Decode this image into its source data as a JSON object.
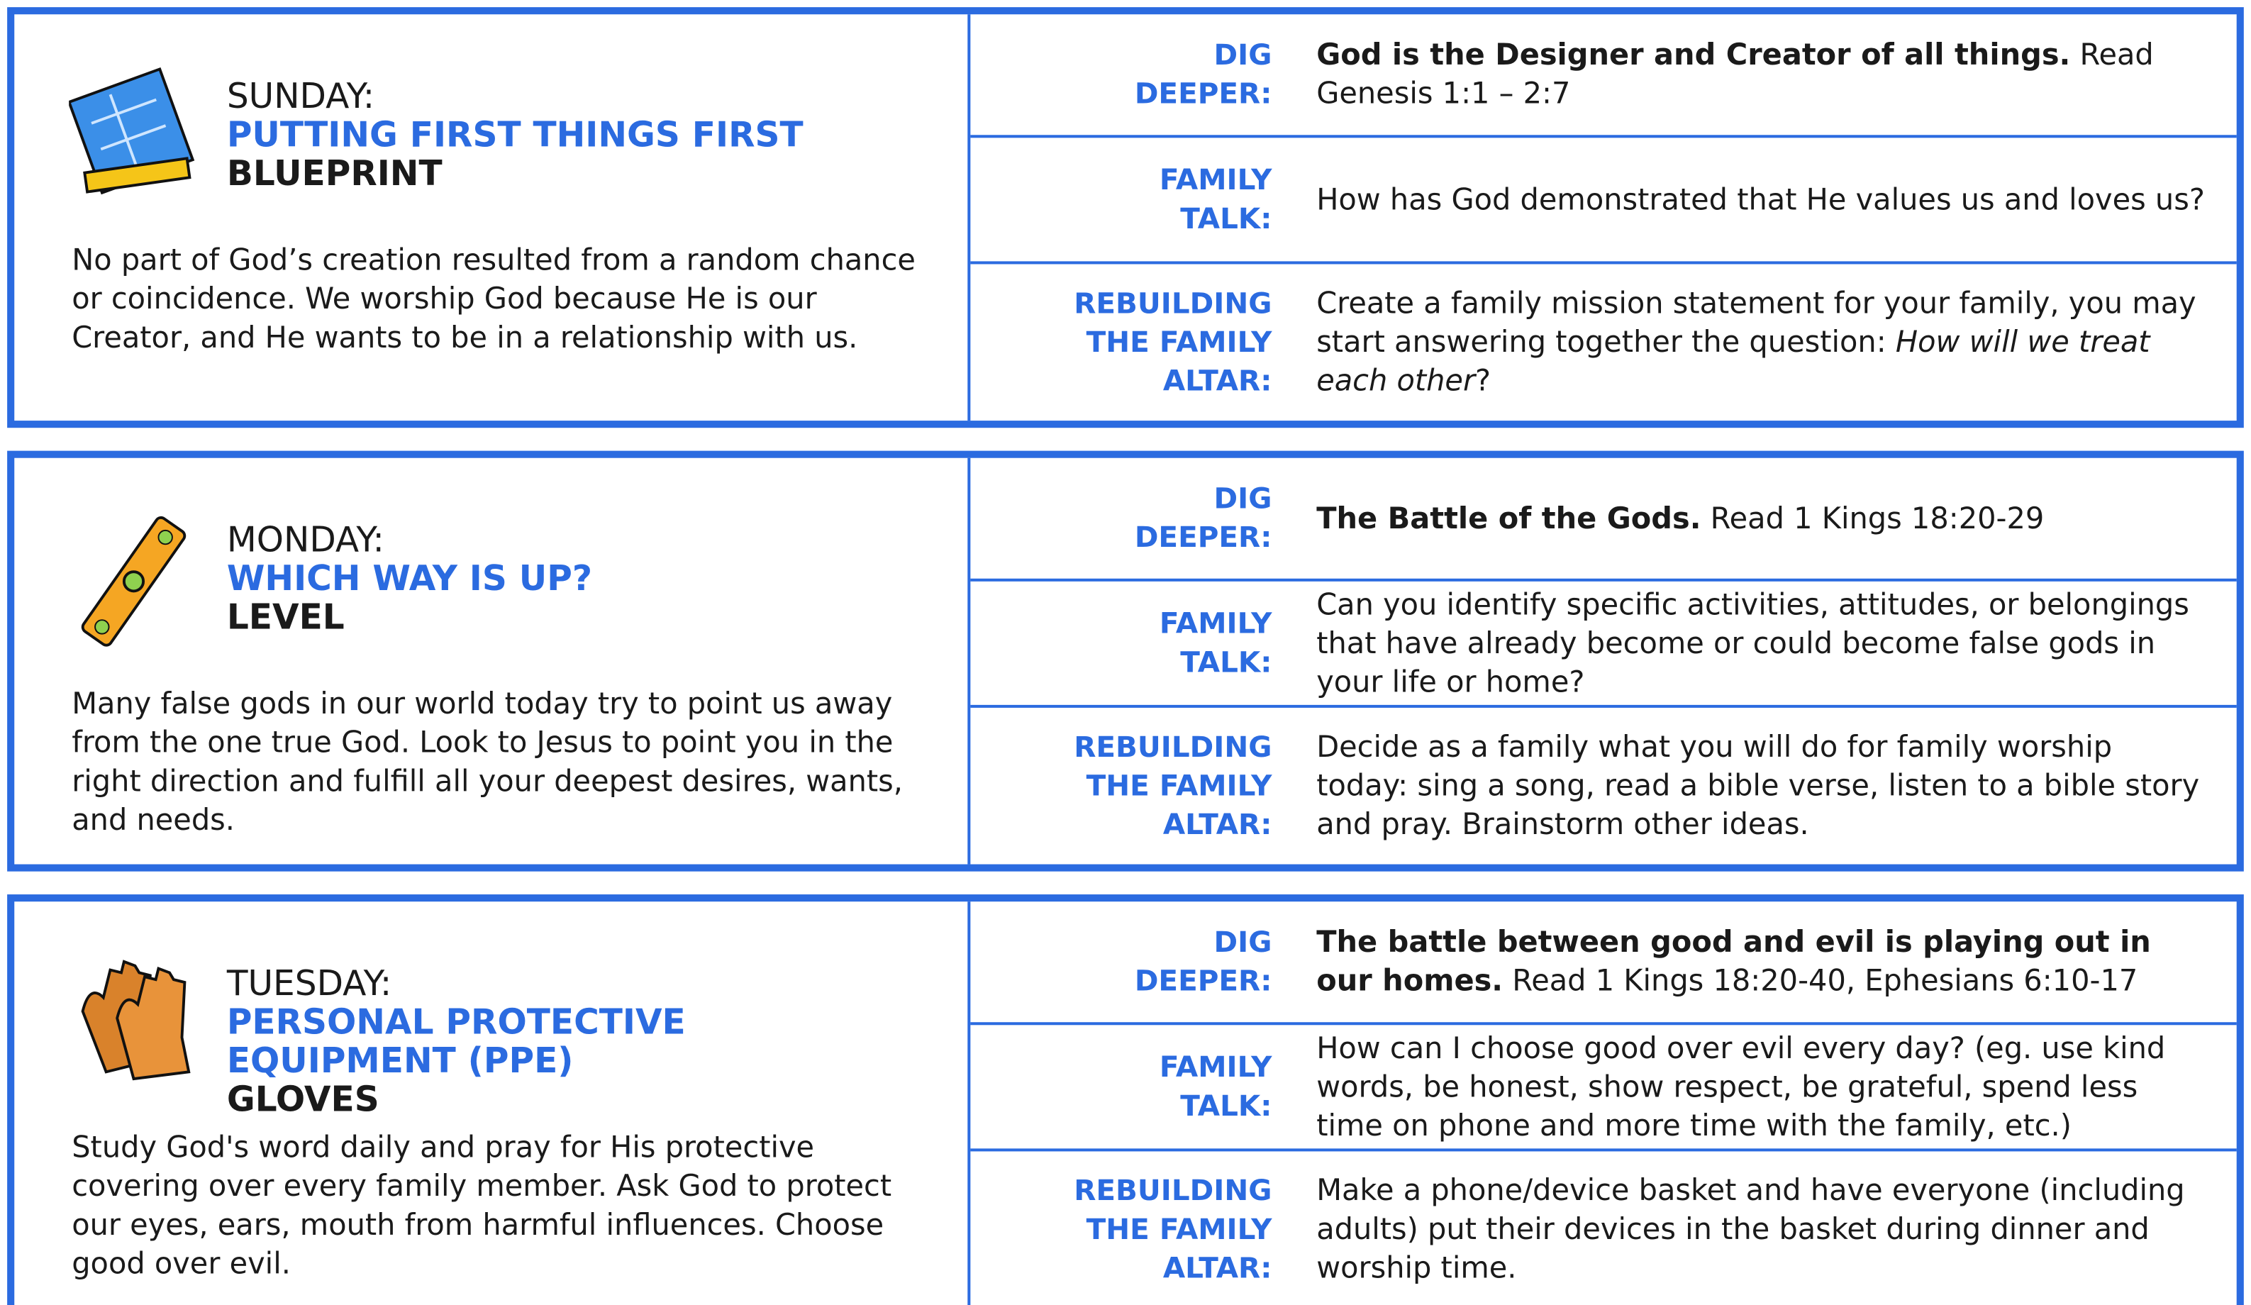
{
  "days": [
    {
      "day": "SUNDAY:",
      "title": "PUTTING FIRST THINGS FIRST",
      "tool": "BLUEPRINT",
      "description": "No part of God’s creation resulted from a random chance or coincidence. We worship God because He is our Creator, and He wants to be in a relationship with us.",
      "rows": [
        {
          "label": [
            "DIG",
            "DEEPER:"
          ],
          "text": [
            {
              "bold": "God is the Designer and Creator of all things."
            },
            {
              "text": " Read Genesis 1:1 – 2:7"
            }
          ]
        },
        {
          "label": [
            "FAMILY",
            "TALK:"
          ],
          "text": [
            {
              "text": "How has God demonstrated that He values us and loves us?"
            }
          ]
        },
        {
          "label": [
            "REBUILDING",
            "THE FAMILY",
            "ALTAR:"
          ],
          "text": [
            {
              "text": "Create a family mission statement for your family, you may start answering together the question: "
            },
            {
              "italic": "How will we treat each other"
            },
            {
              "text": "?"
            }
          ]
        }
      ]
    },
    {
      "day": "MONDAY:",
      "title": "WHICH WAY IS UP?",
      "tool": "LEVEL",
      "description": "Many false gods in our world today try to point us away from the one true God. Look to Jesus to point you in the right direction and fulfill all your deepest desires, wants, and needs.",
      "rows": [
        {
          "label": [
            "DIG",
            "DEEPER:"
          ],
          "text": [
            {
              "bold": "The Battle of the Gods."
            },
            {
              "text": " Read 1 Kings 18:20-29"
            }
          ]
        },
        {
          "label": [
            "FAMILY",
            "TALK:"
          ],
          "text": [
            {
              "text": "Can you identify specific activities, attitudes, or belongings that have already become or could become false gods in your life or home?"
            }
          ]
        },
        {
          "label": [
            "REBUILDING",
            "THE FAMILY",
            "ALTAR:"
          ],
          "text": [
            {
              "text": "Decide as a family what you will do for family worship today: sing a song, read a bible verse, listen to a bible story and pray. Brainstorm other ideas."
            }
          ]
        }
      ]
    },
    {
      "day": "TUESDAY:",
      "title": "PERSONAL PROTECTIVE EQUIPMENT (PPE)",
      "tool": "GLOVES",
      "description": "Study God's word daily and pray for His protective covering over every family member. Ask God to protect our eyes, ears, mouth from harmful influences. Choose good over evil.",
      "rows": [
        {
          "label": [
            "DIG",
            "DEEPER:"
          ],
          "text": [
            {
              "bold": "The battle between good and evil is playing out in our homes."
            },
            {
              "text": " Read 1 Kings 18:20-40, Ephesians 6:10-17"
            }
          ]
        },
        {
          "label": [
            "FAMILY",
            "TALK:"
          ],
          "text": [
            {
              "text": "How can I choose good over evil every day? (eg. use kind words, be honest, show respect, be grateful, spend less time on phone and more time with the family, etc.)"
            }
          ]
        },
        {
          "label": [
            "REBUILDING",
            "THE FAMILY",
            "ALTAR:"
          ],
          "text": [
            {
              "text": "Make a phone/device basket and have everyone (including adults) put their devices in the basket during dinner and worship time."
            }
          ]
        }
      ]
    }
  ]
}
